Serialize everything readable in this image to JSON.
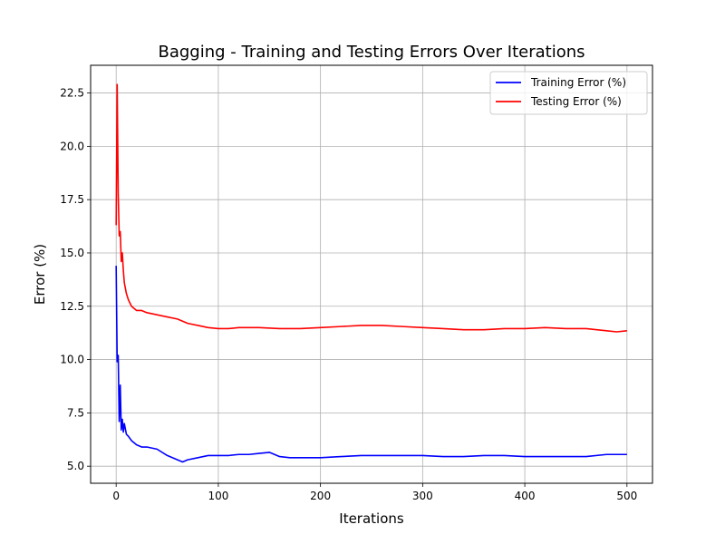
{
  "chart_data": {
    "type": "line",
    "title": "Bagging - Training and Testing Errors Over Iterations",
    "xlabel": "Iterations",
    "ylabel": "Error (%)",
    "xlim": [
      -25,
      525
    ],
    "ylim": [
      4.2,
      23.8
    ],
    "xticks": [
      0,
      100,
      200,
      300,
      400,
      500
    ],
    "yticks": [
      5.0,
      7.5,
      10.0,
      12.5,
      15.0,
      17.5,
      20.0,
      22.5
    ],
    "grid": true,
    "legend_position": "top-right",
    "series": [
      {
        "name": "Training Error (%)",
        "color": "#0000ff",
        "x": [
          0,
          1,
          2,
          3,
          4,
          5,
          6,
          7,
          8,
          10,
          12,
          15,
          20,
          25,
          30,
          40,
          50,
          60,
          65,
          70,
          80,
          90,
          100,
          110,
          120,
          130,
          140,
          150,
          160,
          170,
          180,
          200,
          220,
          240,
          260,
          280,
          300,
          320,
          340,
          360,
          380,
          400,
          420,
          440,
          460,
          480,
          500
        ],
        "values": [
          14.4,
          9.9,
          10.2,
          7.1,
          8.8,
          6.7,
          7.2,
          6.6,
          7.0,
          6.5,
          6.4,
          6.2,
          6.0,
          5.9,
          5.9,
          5.8,
          5.5,
          5.3,
          5.2,
          5.3,
          5.4,
          5.5,
          5.5,
          5.5,
          5.55,
          5.55,
          5.6,
          5.65,
          5.45,
          5.4,
          5.4,
          5.4,
          5.45,
          5.5,
          5.5,
          5.5,
          5.5,
          5.45,
          5.45,
          5.5,
          5.5,
          5.45,
          5.45,
          5.45,
          5.45,
          5.55,
          5.55
        ]
      },
      {
        "name": "Testing Error (%)",
        "color": "#ff0000",
        "x": [
          0,
          1,
          2,
          3,
          4,
          5,
          6,
          7,
          8,
          10,
          12,
          15,
          20,
          25,
          30,
          40,
          50,
          60,
          70,
          80,
          90,
          100,
          110,
          120,
          140,
          160,
          180,
          200,
          220,
          240,
          260,
          280,
          300,
          320,
          340,
          360,
          380,
          400,
          420,
          440,
          460,
          480,
          490,
          500
        ],
        "values": [
          16.3,
          22.9,
          17.8,
          15.8,
          16.0,
          14.6,
          15.0,
          14.2,
          13.6,
          13.1,
          12.8,
          12.5,
          12.3,
          12.3,
          12.2,
          12.1,
          12.0,
          11.9,
          11.7,
          11.6,
          11.5,
          11.45,
          11.45,
          11.5,
          11.5,
          11.45,
          11.45,
          11.5,
          11.55,
          11.6,
          11.6,
          11.55,
          11.5,
          11.45,
          11.4,
          11.4,
          11.45,
          11.45,
          11.5,
          11.45,
          11.45,
          11.35,
          11.3,
          11.35
        ]
      }
    ]
  }
}
